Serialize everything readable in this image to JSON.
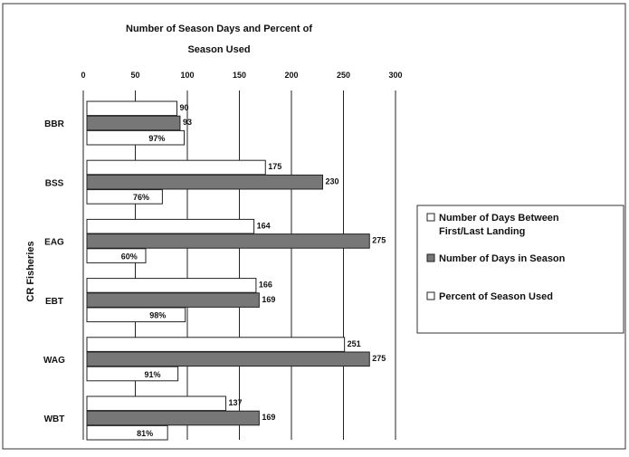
{
  "chart_data": {
    "type": "bar",
    "orientation": "horizontal",
    "title_line1": "Number of Season Days and Percent of",
    "title_line2": "Season Used",
    "ylabel": "CR Fisheries",
    "xlim": [
      0,
      300
    ],
    "xticks": [
      0,
      50,
      100,
      150,
      200,
      250,
      300
    ],
    "grid": true,
    "legend_position": "right",
    "categories": [
      "BBR",
      "BSS",
      "EAG",
      "EBT",
      "WAG",
      "WBT"
    ],
    "series": [
      {
        "name": "Number of Days Between First/Last Landing",
        "legend_lines": [
          "Number of Days Between",
          "First/Last Landing"
        ],
        "color": "#ffffff",
        "values": [
          90,
          175,
          164,
          166,
          251,
          137
        ],
        "labels": [
          "90",
          "175",
          "164",
          "166",
          "251",
          "137"
        ]
      },
      {
        "name": "Number of Days in Season",
        "legend_lines": [
          "Number of Days in Season"
        ],
        "color": "#777777",
        "values": [
          93,
          230,
          275,
          169,
          275,
          169
        ],
        "labels": [
          "93",
          "230",
          "275",
          "169",
          "275",
          "169"
        ]
      },
      {
        "name": "Percent of Season Used",
        "legend_lines": [
          "Percent of Season Used"
        ],
        "color": "#ffffff",
        "values": [
          97,
          76,
          60,
          98,
          91,
          81
        ],
        "labels": [
          "97%",
          "76%",
          "60%",
          "98%",
          "91%",
          "81%"
        ]
      }
    ]
  }
}
